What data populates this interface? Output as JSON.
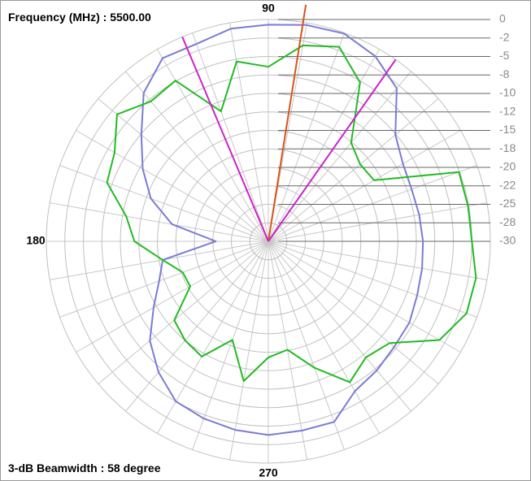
{
  "chart_data": {
    "type": "polar",
    "frequency_label": "Frequency (MHz) :",
    "frequency": {
      "value": 5500,
      "label": "5500.00"
    },
    "beamwidth_label": "3-dB Beamwidth :",
    "beamwidth": 58,
    "beamwidth_unit": "degree",
    "theta": [
      0,
      10,
      20,
      30,
      40,
      50,
      60,
      70,
      80,
      90,
      100,
      110,
      120,
      130,
      140,
      150,
      160,
      170,
      180,
      190,
      200,
      210,
      220,
      230,
      240,
      250,
      260,
      270,
      280,
      290,
      300,
      310,
      320,
      330,
      340,
      350
    ],
    "thetaticks": [
      90,
      180,
      270
    ],
    "rlim": [
      -30,
      0
    ],
    "rticks": [
      0,
      {
        "value": -2.5,
        "label": "-2"
      },
      -5,
      {
        "value": -7.5,
        "label": "-8"
      },
      -10,
      {
        "value": -12.5,
        "label": "-12"
      },
      -15,
      {
        "value": -17.5,
        "label": "-18"
      },
      -20,
      {
        "value": -22.5,
        "label": "-22"
      },
      -25,
      {
        "value": -27.5,
        "label": "-28"
      },
      -30
    ],
    "series": [
      {
        "color": "#7b7bd6",
        "values": [
          -9.1,
          -9.3,
          -9.4,
          -9,
          -7.6,
          -3,
          -1.1,
          -0.1,
          -0.3,
          -0.7,
          -0.8,
          -1.6,
          -1.4,
          -3.8,
          -7.6,
          -10.4,
          -13.1,
          -16.8,
          -22.9,
          -15.5,
          -14.3,
          -12.1,
          -9.1,
          -6.9,
          -5,
          -4.5,
          -4.1,
          -3.8,
          -4,
          -4,
          -6.6,
          -7.2,
          -7.8,
          -8,
          -8.6,
          -8.9
        ]
      },
      {
        "color": "#22bb22",
        "values": [
          -2.5,
          -2.6,
          -2.6,
          -13.5,
          -13.8,
          -12.6,
          -5.2,
          -2,
          -3.1,
          -6.4,
          -5.3,
          -11.3,
          -4.9,
          -5.3,
          -3.3,
          -6,
          -6.8,
          -10.5,
          -11.9,
          -15.5,
          -17.7,
          -17.8,
          -13.4,
          -12.5,
          -12,
          -15.8,
          -10.8,
          -14.3,
          -15.1,
          -11.8,
          -8,
          -9.5,
          -8.6,
          -3.3,
          -1.5,
          -1.5
        ]
      }
    ],
    "markers": [
      {
        "angle": 81,
        "color": "#d9541a"
      },
      {
        "angle": 112.8,
        "color": "#cc22cc"
      },
      {
        "angle": 55,
        "color": "#cc22cc"
      }
    ]
  }
}
